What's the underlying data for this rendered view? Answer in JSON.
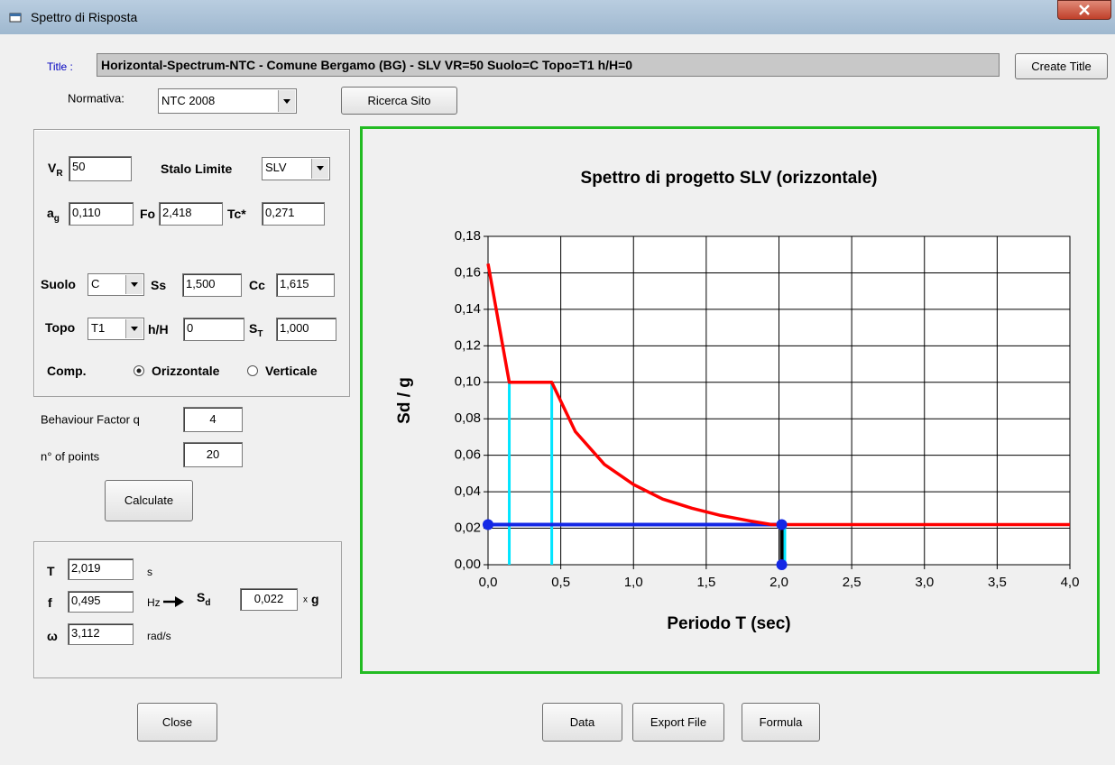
{
  "window": {
    "title": "Spettro di Risposta"
  },
  "header": {
    "title_label": "Title :",
    "title_text": "Horizontal-Spectrum-NTC - Comune Bergamo (BG) - SLV VR=50 Suolo=C Topo=T1 h/H=0",
    "create_title": "Create Title",
    "normativa_label": "Normativa:",
    "normativa": "NTC 2008",
    "ricerca_sito": "Ricerca Sito"
  },
  "site": {
    "vr": {
      "label": "V",
      "sub": "R",
      "value": "50"
    },
    "stato_limite": {
      "label": "Stalo Limite",
      "value": "SLV"
    },
    "ag": {
      "label": "a",
      "sub": "g",
      "value": "0,110"
    },
    "fo": {
      "label": "Fo",
      "value": "2,418"
    },
    "tc": {
      "label": "Tc*",
      "value": "0,271"
    },
    "suolo": {
      "label": "Suolo",
      "value": "C"
    },
    "ss": {
      "label": "Ss",
      "value": "1,500"
    },
    "cc": {
      "label": "Cc",
      "value": "1,615"
    },
    "topo": {
      "label": "Topo",
      "value": "T1"
    },
    "hh": {
      "label": "h/H",
      "value": "0"
    },
    "st": {
      "label": "S",
      "sub": "T",
      "value": "1,000"
    },
    "comp": {
      "label": "Comp.",
      "options": [
        "Orizzontale",
        "Verticale"
      ]
    }
  },
  "calc": {
    "q_label": "Behaviour Factor q",
    "q": "4",
    "points_label": "n° of points",
    "points": "20",
    "calculate": "Calculate"
  },
  "result": {
    "t": {
      "label": "T",
      "value": "2,019",
      "unit": "s"
    },
    "f": {
      "label": "f",
      "value": "0,495",
      "unit": "Hz"
    },
    "omega": {
      "label": "ω",
      "value": "3,112",
      "unit": "rad/s"
    },
    "sd": {
      "label": "S",
      "sub": "d",
      "value": "0,022",
      "unit_x": "x",
      "unit": "g"
    }
  },
  "buttons": {
    "close": "Close",
    "data": "Data",
    "export": "Export File",
    "formula": "Formula"
  },
  "chart_data": {
    "type": "line",
    "title": "Spettro di progetto SLV (orizzontale)",
    "x_label": "Periodo T (sec)",
    "y_label": "Sd / g",
    "x": [
      0,
      0.146,
      0.438,
      0.6,
      0.8,
      1.0,
      1.2,
      1.4,
      1.6,
      1.8,
      1.95,
      4.0
    ],
    "values": [
      0.165,
      0.1,
      0.1,
      0.073,
      0.055,
      0.044,
      0.036,
      0.031,
      0.027,
      0.024,
      0.022,
      0.022
    ],
    "color": "#ff0000",
    "xlim": [
      0,
      4
    ],
    "ylim": [
      0,
      0.18
    ],
    "xticks": [
      {
        "value": 0,
        "label": "0,0"
      },
      {
        "value": 0.5,
        "label": "0,5"
      },
      {
        "value": 1,
        "label": "1,0"
      },
      {
        "value": 1.5,
        "label": "1,5"
      },
      {
        "value": 2,
        "label": "2,0"
      },
      {
        "value": 2.5,
        "label": "2,5"
      },
      {
        "value": 3,
        "label": "3,0"
      },
      {
        "value": 3.5,
        "label": "3,5"
      },
      {
        "value": 4,
        "label": "4,0"
      }
    ],
    "yticks": [
      {
        "value": 0,
        "label": "0,00"
      },
      {
        "value": 0.02,
        "label": "0,02"
      },
      {
        "value": 0.04,
        "label": "0,04"
      },
      {
        "value": 0.06,
        "label": "0,06"
      },
      {
        "value": 0.08,
        "label": "0,08"
      },
      {
        "value": 0.1,
        "label": "0,10"
      },
      {
        "value": 0.12,
        "label": "0,12"
      },
      {
        "value": 0.14,
        "label": "0,14"
      },
      {
        "value": 0.16,
        "label": "0,16"
      },
      {
        "value": 0.18,
        "label": "0,18"
      }
    ],
    "grid": true,
    "guides": {
      "color": "#00e5ff",
      "x": [
        0.146,
        0.438,
        2.04
      ],
      "top": [
        0.1,
        0.1,
        0.022
      ]
    },
    "marker": {
      "x": 2.019,
      "y": 0.022,
      "color": "#1428e6"
    }
  }
}
